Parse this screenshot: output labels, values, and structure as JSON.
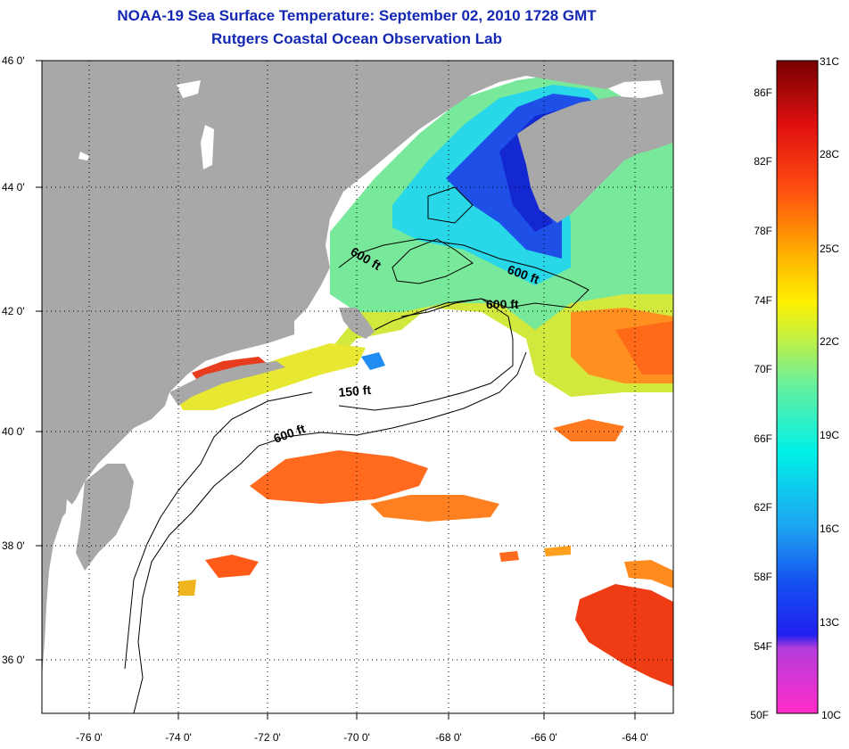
{
  "header": {
    "title": "NOAA-19 Sea Surface Temperature:  September 02, 2010 1728 GMT",
    "subtitle": "Rutgers Coastal Ocean Observation Lab"
  },
  "map": {
    "lon_range": [
      -77,
      -63
    ],
    "lat_range": [
      35,
      46
    ],
    "lon_ticks": [
      {
        "value": -76,
        "label": "-76 0'"
      },
      {
        "value": -74,
        "label": "-74 0'"
      },
      {
        "value": -72,
        "label": "-72 0'"
      },
      {
        "value": -70,
        "label": "-70 0'"
      },
      {
        "value": -68,
        "label": "-68 0'"
      },
      {
        "value": -66,
        "label": "-66 0'"
      },
      {
        "value": -64,
        "label": "-64 0'"
      }
    ],
    "lat_ticks": [
      {
        "value": 46,
        "label": "46 0'"
      },
      {
        "value": 44,
        "label": "44 0'"
      },
      {
        "value": 42,
        "label": "42 0'"
      },
      {
        "value": 40,
        "label": "40 0'"
      },
      {
        "value": 38,
        "label": "38 0'"
      },
      {
        "value": 36,
        "label": "36 0'"
      }
    ],
    "grid": "dotted",
    "contour_labels": [
      "600 ft",
      "600 ft",
      "600 ft",
      "150 ft",
      "600 ft"
    ],
    "colors": {
      "land": "#a8a8a8",
      "no_data": "#ffffff",
      "contour": "#000000"
    }
  },
  "colorbar": {
    "fahrenheit_labels": [
      "86F",
      "82F",
      "78F",
      "74F",
      "70F",
      "66F",
      "62F",
      "58F",
      "54F",
      "50F"
    ],
    "celsius_labels": [
      "31C",
      "28C",
      "25C",
      "22C",
      "19C",
      "16C",
      "13C",
      "10C"
    ]
  }
}
